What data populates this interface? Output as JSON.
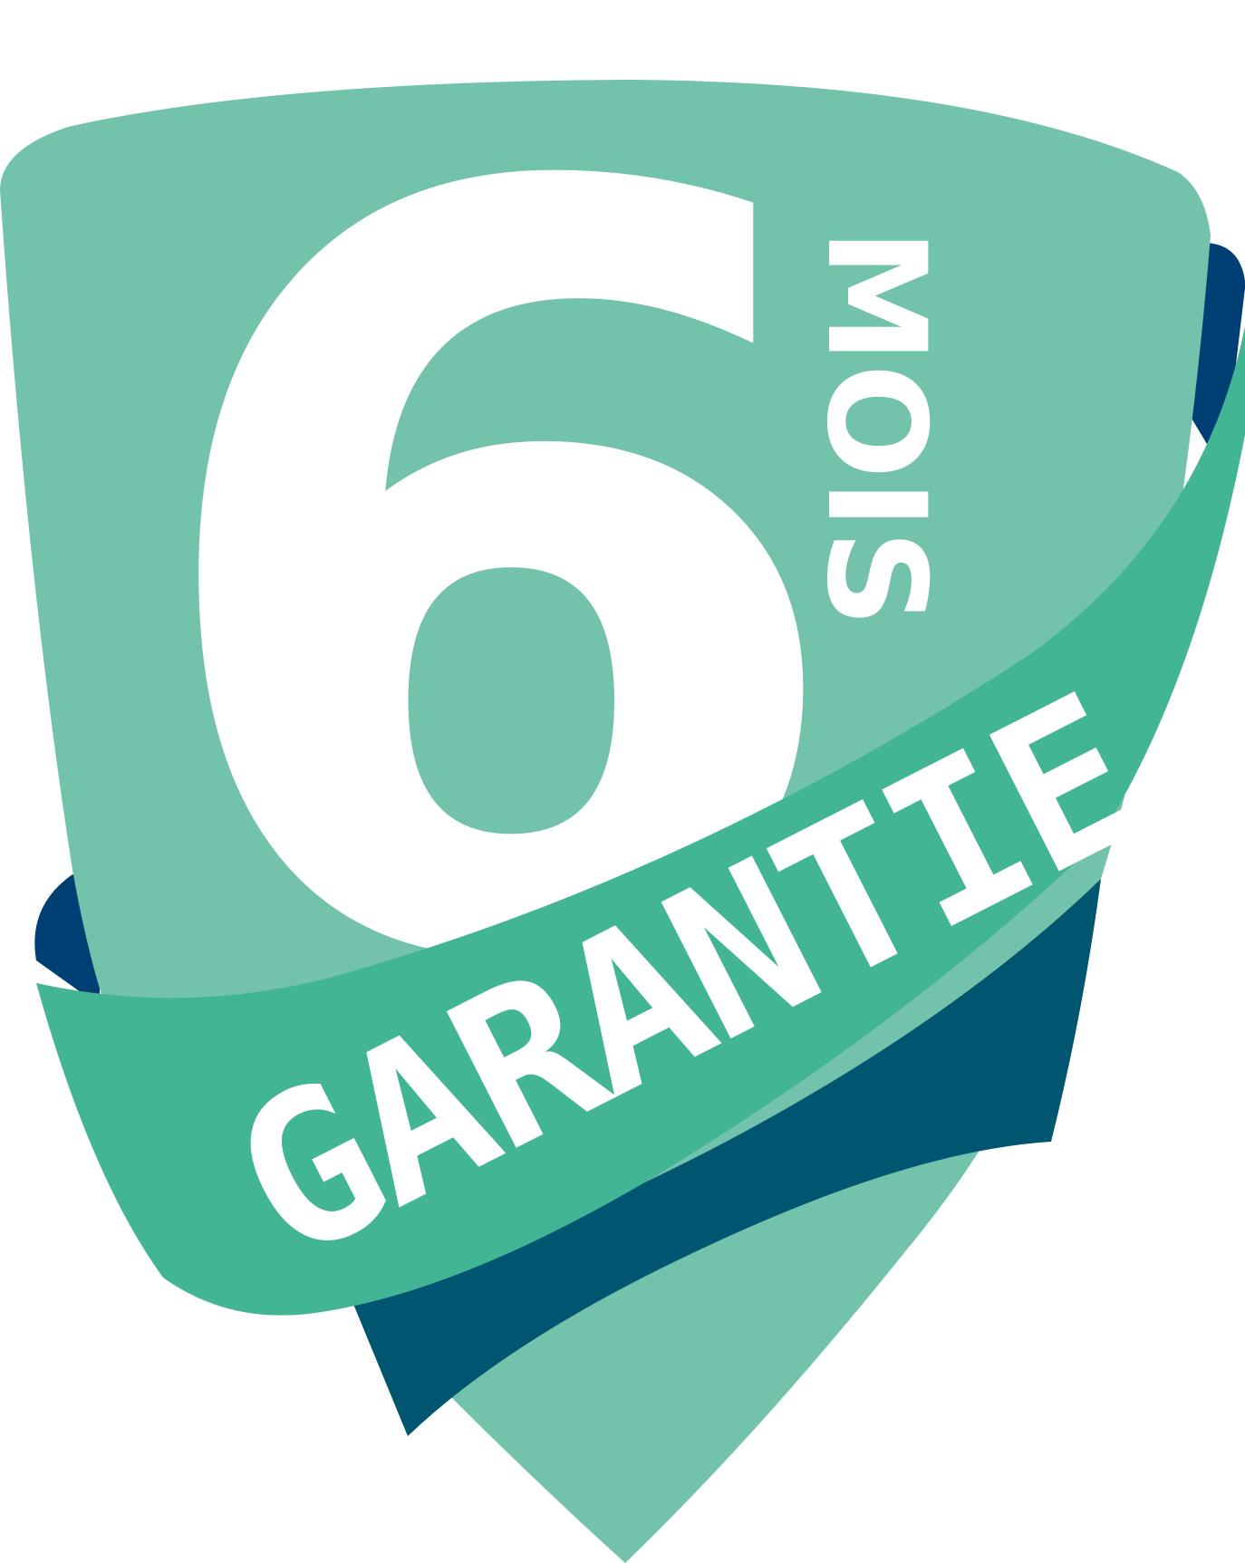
{
  "badge": {
    "number": "6",
    "unit": "MOIS",
    "ribbon_text": "GARANTIE"
  },
  "colors": {
    "shield_light": "#73C2AC",
    "ribbon_green": "#42B694",
    "ribbon_back_dark": "#005570",
    "ribbon_back_navy": "#003F73",
    "text_white": "#FFFFFF",
    "background": "#FFFFFF"
  }
}
